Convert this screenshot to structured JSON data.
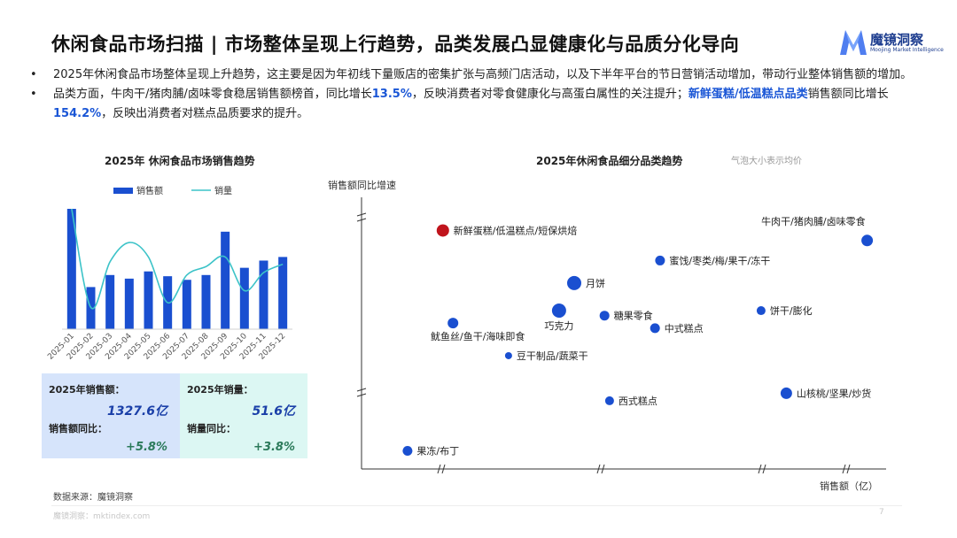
{
  "title": "休闲食品市场扫描 | 市场整体呈现上行趋势，品类发展凸显健康化与品质分化导向",
  "logo": {
    "name": "魔镜洞察",
    "tagline": "Moojing Market Intelligence"
  },
  "bullets": {
    "b1": "2025年休闲食品市场整体呈现上升趋势，这主要是因为年初线下量贩店的密集扩张与高频门店活动，以及下半年平台的节日营销活动增加，带动行业整体销售额的增加。",
    "b2_p1": "品类方面，牛肉干/猪肉脯/卤味零食稳居销售额榜首，同比增长",
    "b2_h1": "13.5%",
    "b2_p2": "，反映消费者对零食健康化与高蛋白属性的关注提升；",
    "b2_h2": "新鲜蛋糕/低温糕点品类",
    "b2_p3": "销售额同比增长",
    "b2_h3": "154.2%",
    "b2_p4": "，反映出消费者对糕点品质要求的提升。"
  },
  "kpi": {
    "sales_label": "2025年销售额：",
    "sales_value": "1327.6亿",
    "sales_yoy_label": "销售额同比：",
    "sales_yoy_value": "+5.8%",
    "volume_label": "2025年销量：",
    "volume_value": "51.6亿",
    "volume_yoy_label": "销量同比：",
    "volume_yoy_value": "+3.8%"
  },
  "source": "数据来源：魔镜洞察",
  "footer": "魔镜洞察：mktindex.com",
  "page_number": "7",
  "colors": {
    "bar": "#1a4fd0",
    "line": "#3cc3c8",
    "bubble": "#1a4fd0",
    "highlight": "#c0141c",
    "kpi_left": "#d6e4fb",
    "kpi_right": "#dcf7f3"
  },
  "chart_data": [
    {
      "type": "bar",
      "title": "2025年 休闲食品市场销售趋势",
      "legend_position": "top",
      "categories": [
        "2025-01",
        "2025-02",
        "2025-03",
        "2025-04",
        "2025-05",
        "2025-06",
        "2025-07",
        "2025-08",
        "2025-09",
        "2025-10",
        "2025-11",
        "2025-12"
      ],
      "series": [
        {
          "name": "销售额",
          "type": "bar",
          "values": [
            100,
            35,
            45,
            42,
            48,
            44,
            41,
            45,
            81,
            51,
            57,
            60
          ]
        },
        {
          "name": "销量",
          "type": "line",
          "values": [
            100,
            18,
            56,
            72,
            60,
            22,
            45,
            52,
            60,
            32,
            47,
            54
          ]
        }
      ]
    },
    {
      "type": "scatter",
      "title": "2025年休闲食品细分品类趋势",
      "subtitle": "气泡大小表示均价",
      "xlabel": "销售额（亿）",
      "ylabel": "销售额同比增速",
      "xlim": [
        0,
        100
      ],
      "ylim": [
        0,
        100
      ],
      "points": [
        {
          "label": "新鲜蛋糕/低温糕点/短保烘焙",
          "x": 14,
          "y": 91,
          "r": 7,
          "highlight": true
        },
        {
          "label": "牛肉干/猪肉脯/卤味零食",
          "x": 98,
          "y": 87,
          "r": 6.5
        },
        {
          "label": "蜜饯/枣类/梅/果干/冻干",
          "x": 57,
          "y": 79,
          "r": 5.5
        },
        {
          "label": "月饼",
          "x": 40,
          "y": 70,
          "r": 8
        },
        {
          "label": "饼干/膨化",
          "x": 77,
          "y": 59,
          "r": 5
        },
        {
          "label": "巧克力",
          "x": 37,
          "y": 59,
          "r": 8
        },
        {
          "label": "糖果零食",
          "x": 46,
          "y": 57,
          "r": 5.5
        },
        {
          "label": "中式糕点",
          "x": 56,
          "y": 52,
          "r": 5.5
        },
        {
          "label": "鱿鱼丝/鱼干/海味即食",
          "x": 16,
          "y": 54,
          "r": 6
        },
        {
          "label": "豆干制品/蔬菜干",
          "x": 27,
          "y": 41,
          "r": 4
        },
        {
          "label": "山核桃/坚果/炒货",
          "x": 82,
          "y": 26,
          "r": 6.5
        },
        {
          "label": "西式糕点",
          "x": 47,
          "y": 23,
          "r": 5
        },
        {
          "label": "果冻/布丁",
          "x": 7,
          "y": 3,
          "r": 5.5
        }
      ]
    }
  ]
}
